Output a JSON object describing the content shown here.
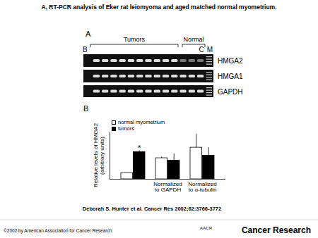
{
  "title": "A, RT-PCR analysis of Eker rat leiomyoma and aged matched normal myometrium.",
  "panel_a": {
    "label": "A",
    "lane_left": "B",
    "groups": [
      "Tumors",
      "Normal"
    ],
    "lane_right": [
      "C",
      "M"
    ],
    "genes": [
      "HMGA2",
      "HMGA1",
      "GAPDH"
    ]
  },
  "panel_b_label": "B",
  "chart_data": {
    "type": "bar",
    "categories": [
      null,
      "Normalized to GAPDH",
      "Normalized to α-tubulin"
    ],
    "ylabel": "Relative levels of HMGA2\n(arbitrary units)",
    "ylim": [
      0,
      75
    ],
    "tick_labels": false,
    "legend": "top-left",
    "series": [
      {
        "name": "normal myometrium",
        "color": "#ffffff",
        "values": [
          10,
          34,
          51
        ],
        "errors": [
          null,
          2,
          22
        ]
      },
      {
        "name": "tumors",
        "color": "#000000",
        "values": [
          44,
          30,
          38
        ],
        "errors": [
          2,
          11,
          13
        ]
      }
    ],
    "annotations": [
      {
        "text": "*",
        "category": 0,
        "series": "tumors"
      }
    ]
  },
  "citation": "Deborah S. Hunter et al. Cancer Res 2002;62:3766-3772",
  "footer": {
    "copyright": "©2002 by American Association for Cancer Research",
    "journal": "Cancer Research",
    "logo": "AACR"
  }
}
